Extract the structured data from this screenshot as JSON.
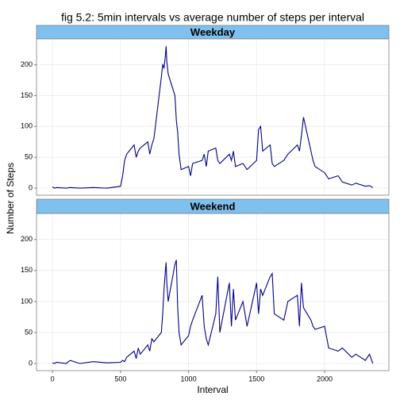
{
  "chart_data": {
    "type": "line",
    "title": "fig 5.2: 5min intervals vs average number of steps per interval",
    "xlabel": "Interval",
    "ylabel": "Number of Steps",
    "xlim": [
      -117.75,
      2472.75
    ],
    "xticks": [
      0,
      500,
      1000,
      1500,
      2000
    ],
    "ylim": [
      -11.5,
      241.9
    ],
    "yticks": [
      0,
      50,
      100,
      150,
      200
    ],
    "grid": true,
    "color": "#00008b",
    "facets": [
      {
        "name": "Weekday",
        "x": [
          0,
          15,
          30,
          100,
          130,
          200,
          300,
          400,
          500,
          515,
          530,
          545,
          600,
          615,
          630,
          645,
          700,
          715,
          730,
          745,
          800,
          810,
          820,
          830,
          835,
          840,
          850,
          900,
          910,
          920,
          930,
          945,
          1000,
          1015,
          1030,
          1100,
          1115,
          1130,
          1145,
          1200,
          1215,
          1230,
          1300,
          1315,
          1330,
          1345,
          1400,
          1430,
          1500,
          1515,
          1530,
          1545,
          1600,
          1615,
          1630,
          1700,
          1730,
          1800,
          1815,
          1830,
          1845,
          1900,
          1915,
          1930,
          2000,
          2030,
          2100,
          2130,
          2200,
          2230,
          2300,
          2330,
          2355
        ],
        "values": [
          2,
          0,
          1,
          0,
          1,
          0,
          1,
          0,
          3,
          20,
          45,
          55,
          70,
          50,
          60,
          65,
          75,
          55,
          70,
          80,
          180,
          200,
          195,
          215,
          230,
          205,
          185,
          150,
          110,
          90,
          55,
          30,
          35,
          20,
          40,
          45,
          55,
          35,
          60,
          65,
          45,
          40,
          55,
          45,
          60,
          35,
          40,
          30,
          45,
          95,
          100,
          60,
          70,
          40,
          35,
          45,
          55,
          70,
          60,
          85,
          115,
          60,
          45,
          35,
          25,
          15,
          20,
          10,
          5,
          8,
          3,
          4,
          1
        ]
      },
      {
        "name": "Weekend",
        "x": [
          0,
          15,
          30,
          100,
          130,
          200,
          300,
          400,
          500,
          515,
          530,
          545,
          600,
          615,
          630,
          645,
          700,
          715,
          730,
          745,
          800,
          810,
          820,
          830,
          835,
          840,
          850,
          900,
          910,
          920,
          930,
          945,
          1000,
          1015,
          1030,
          1100,
          1115,
          1130,
          1145,
          1200,
          1215,
          1230,
          1300,
          1315,
          1330,
          1345,
          1400,
          1430,
          1500,
          1515,
          1530,
          1545,
          1600,
          1615,
          1630,
          1700,
          1730,
          1800,
          1815,
          1830,
          1845,
          1900,
          1915,
          1930,
          2000,
          2030,
          2100,
          2130,
          2200,
          2230,
          2300,
          2330,
          2355
        ],
        "values": [
          1,
          0,
          2,
          0,
          5,
          0,
          3,
          1,
          2,
          5,
          3,
          10,
          20,
          8,
          25,
          15,
          30,
          20,
          40,
          35,
          50,
          80,
          120,
          150,
          163,
          130,
          100,
          160,
          167,
          90,
          50,
          30,
          45,
          60,
          70,
          110,
          60,
          40,
          30,
          80,
          140,
          50,
          130,
          60,
          120,
          70,
          100,
          60,
          130,
          80,
          120,
          110,
          140,
          145,
          80,
          70,
          100,
          110,
          60,
          130,
          90,
          70,
          60,
          55,
          60,
          25,
          20,
          25,
          10,
          15,
          5,
          15,
          0
        ]
      }
    ]
  }
}
